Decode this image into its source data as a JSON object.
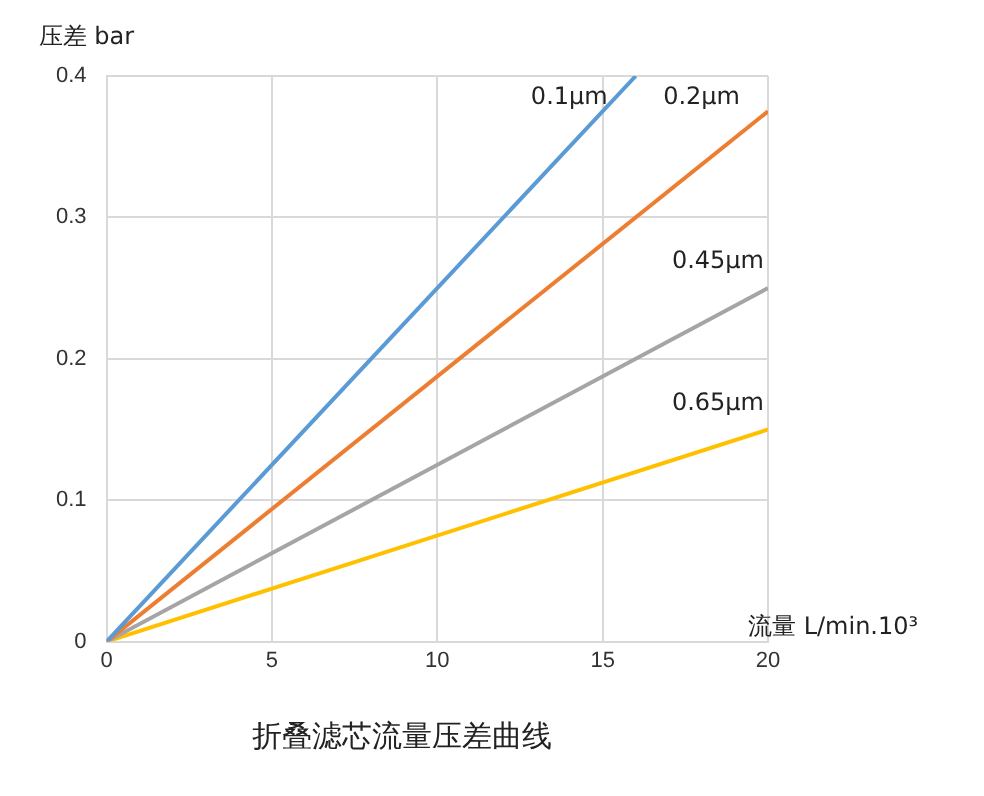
{
  "chart_data": {
    "type": "line",
    "title": "折叠滤芯流量压差曲线",
    "xlabel": "流量 L/min.10³",
    "ylabel": "压差 bar",
    "xlim": [
      0,
      20
    ],
    "xticks": [
      0,
      5,
      10,
      15,
      20
    ],
    "ylim": [
      0,
      0.4
    ],
    "yticks": [
      0,
      0.1,
      0.2,
      0.3,
      0.4
    ],
    "grid": true,
    "legend": false,
    "marker": "none",
    "series": [
      {
        "name": "0.1μm",
        "color": "#5b9bd5",
        "x": [
          0,
          16
        ],
        "values": [
          0,
          0.4
        ]
      },
      {
        "name": "0.2μm",
        "color": "#ed7d31",
        "x": [
          0,
          20
        ],
        "values": [
          0,
          0.375
        ]
      },
      {
        "name": "0.45μm",
        "color": "#a5a5a5",
        "x": [
          0,
          20
        ],
        "values": [
          0,
          0.25
        ]
      },
      {
        "name": "0.65μm",
        "color": "#ffc000",
        "x": [
          0,
          20
        ],
        "values": [
          0,
          0.15
        ]
      }
    ]
  }
}
